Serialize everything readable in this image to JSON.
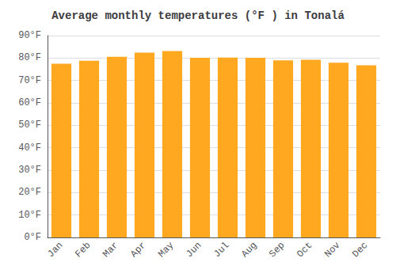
{
  "chart_data": {
    "type": "bar",
    "title": "Average monthly temperatures (°F ) in Tonalá",
    "categories": [
      "Jan",
      "Feb",
      "Mar",
      "Apr",
      "May",
      "Jun",
      "Jul",
      "Aug",
      "Sep",
      "Oct",
      "Nov",
      "Dec"
    ],
    "values": [
      77.5,
      78.8,
      80.6,
      82.4,
      83.1,
      80.1,
      80.2,
      80.1,
      79.0,
      79.2,
      77.9,
      76.8
    ],
    "color": "#FFA820",
    "ylim": [
      0,
      90
    ],
    "yticks": [
      {
        "value": 0,
        "label": "0°F"
      },
      {
        "value": 10,
        "label": "10°F"
      },
      {
        "value": 20,
        "label": "20°F"
      },
      {
        "value": 30,
        "label": "30°F"
      },
      {
        "value": 40,
        "label": "40°F"
      },
      {
        "value": 50,
        "label": "50°F"
      },
      {
        "value": 60,
        "label": "60°F"
      },
      {
        "value": 70,
        "label": "70°F"
      },
      {
        "value": 80,
        "label": "80°F"
      },
      {
        "value": 90,
        "label": "90°F"
      }
    ],
    "grid": true
  }
}
